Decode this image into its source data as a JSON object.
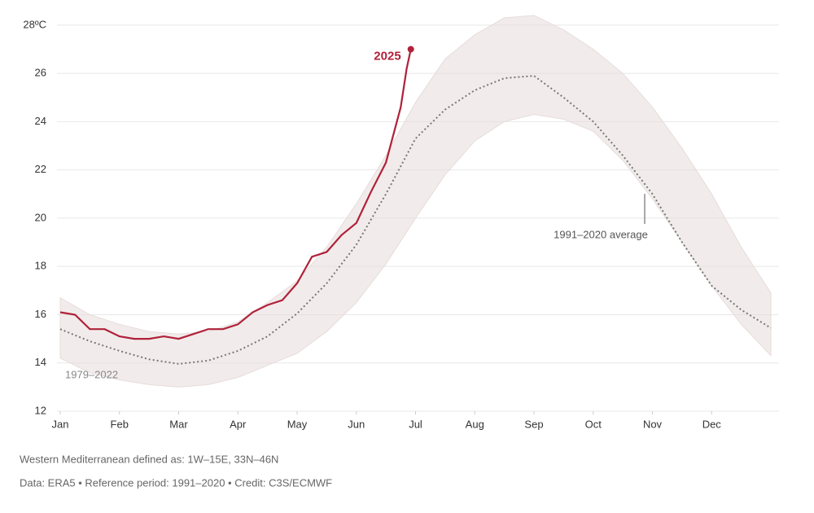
{
  "chart_data": {
    "type": "line",
    "xlim": [
      0,
      12
    ],
    "ylim": [
      12,
      28.5
    ],
    "xticks": [
      {
        "value": 0,
        "label": "Jan"
      },
      {
        "value": 1,
        "label": "Feb"
      },
      {
        "value": 2,
        "label": "Mar"
      },
      {
        "value": 3,
        "label": "Apr"
      },
      {
        "value": 4,
        "label": "May"
      },
      {
        "value": 5,
        "label": "Jun"
      },
      {
        "value": 6,
        "label": "Jul"
      },
      {
        "value": 7,
        "label": "Aug"
      },
      {
        "value": 8,
        "label": "Sep"
      },
      {
        "value": 9,
        "label": "Oct"
      },
      {
        "value": 10,
        "label": "Nov"
      },
      {
        "value": 11,
        "label": "Dec"
      }
    ],
    "yticks": [
      12,
      14,
      16,
      18,
      20,
      22,
      24,
      26,
      {
        "value": 28,
        "label": "28ºC"
      }
    ],
    "grid": true,
    "series": [
      {
        "name": "1979–2022",
        "type": "band",
        "color": "#e6dcdb",
        "x": [
          0,
          0.5,
          1,
          1.5,
          2,
          2.5,
          3,
          3.5,
          4,
          4.5,
          5,
          5.5,
          6,
          6.5,
          7,
          7.5,
          8,
          8.5,
          9,
          9.5,
          10,
          10.5,
          11,
          11.5,
          12
        ],
        "high": [
          16.7,
          16.0,
          15.6,
          15.3,
          15.2,
          15.3,
          15.7,
          16.5,
          17.4,
          18.8,
          20.6,
          22.6,
          24.8,
          26.6,
          27.6,
          28.3,
          28.4,
          27.8,
          27.0,
          26.0,
          24.6,
          22.9,
          21.0,
          18.8,
          16.9
        ],
        "low": [
          14.2,
          13.6,
          13.3,
          13.1,
          13.0,
          13.1,
          13.4,
          13.9,
          14.4,
          15.3,
          16.5,
          18.1,
          20.0,
          21.8,
          23.2,
          24.0,
          24.3,
          24.1,
          23.6,
          22.4,
          20.8,
          19.0,
          17.2,
          15.6,
          14.3
        ]
      },
      {
        "name": "1991–2020 average",
        "type": "dotted",
        "color": "#777777",
        "x": [
          0,
          0.5,
          1,
          1.5,
          2,
          2.5,
          3,
          3.5,
          4,
          4.5,
          5,
          5.5,
          6,
          6.5,
          7,
          7.5,
          8,
          8.5,
          9,
          9.5,
          10,
          10.5,
          11,
          11.5,
          12
        ],
        "values": [
          15.4,
          14.9,
          14.5,
          14.15,
          13.96,
          14.1,
          14.5,
          15.1,
          16.05,
          17.3,
          18.9,
          21.0,
          23.3,
          24.5,
          25.3,
          25.8,
          25.9,
          25.0,
          24.0,
          22.6,
          21.0,
          19.0,
          17.2,
          16.2,
          15.45
        ]
      },
      {
        "name": "2025",
        "type": "line",
        "color": "#b0213a",
        "x": [
          0,
          0.25,
          0.5,
          0.75,
          1,
          1.25,
          1.5,
          1.75,
          2,
          2.25,
          2.5,
          2.75,
          3,
          3.25,
          3.5,
          3.75,
          4,
          4.25,
          4.5,
          4.75,
          5,
          5.25,
          5.5,
          5.75,
          5.85,
          5.92
        ],
        "values": [
          16.1,
          16.0,
          15.4,
          15.4,
          15.1,
          15.0,
          15.0,
          15.1,
          15.0,
          15.2,
          15.4,
          15.4,
          15.6,
          16.1,
          16.4,
          16.6,
          17.3,
          18.4,
          18.6,
          19.3,
          19.8,
          21.1,
          22.3,
          24.6,
          26.2,
          27.0
        ]
      }
    ],
    "notes": [
      "Western Mediterranean defined as: 1W–15E, 33N–46N",
      "Data: ERA5 • Reference period: 1991–2020 • Credit: C3S/ECMWF"
    ]
  }
}
